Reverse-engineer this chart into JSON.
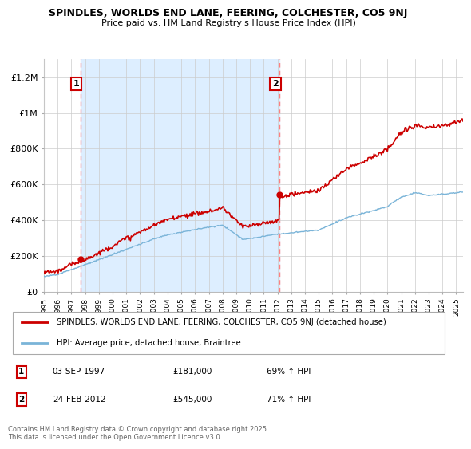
{
  "title_line1": "SPINDLES, WORLDS END LANE, FEERING, COLCHESTER, CO5 9NJ",
  "title_line2": "Price paid vs. HM Land Registry's House Price Index (HPI)",
  "ylim": [
    0,
    1300000
  ],
  "yticks": [
    0,
    200000,
    400000,
    600000,
    800000,
    1000000,
    1200000
  ],
  "ytick_labels": [
    "£0",
    "£200K",
    "£400K",
    "£600K",
    "£800K",
    "£1M",
    "£1.2M"
  ],
  "sale1_date": 1997.67,
  "sale1_price": 181000,
  "sale1_label": "1",
  "sale2_date": 2012.15,
  "sale2_price": 545000,
  "sale2_label": "2",
  "hpi_line_color": "#7ab4d8",
  "sale_line_color": "#cc0000",
  "vline_color": "#ff8080",
  "ownership_fill_color": "#ddeeff",
  "annotation_box_color": "#cc0000",
  "grid_color": "#cccccc",
  "background_color": "#ffffff",
  "plot_bg_color": "#ffffff",
  "legend_label_red": "SPINDLES, WORLDS END LANE, FEERING, COLCHESTER, CO5 9NJ (detached house)",
  "legend_label_blue": "HPI: Average price, detached house, Braintree",
  "table_row1": [
    "1",
    "03-SEP-1997",
    "£181,000",
    "69% ↑ HPI"
  ],
  "table_row2": [
    "2",
    "24-FEB-2012",
    "£545,000",
    "71% ↑ HPI"
  ],
  "footnote": "Contains HM Land Registry data © Crown copyright and database right 2025.\nThis data is licensed under the Open Government Licence v3.0.",
  "xmin": 1995,
  "xmax": 2025.5
}
